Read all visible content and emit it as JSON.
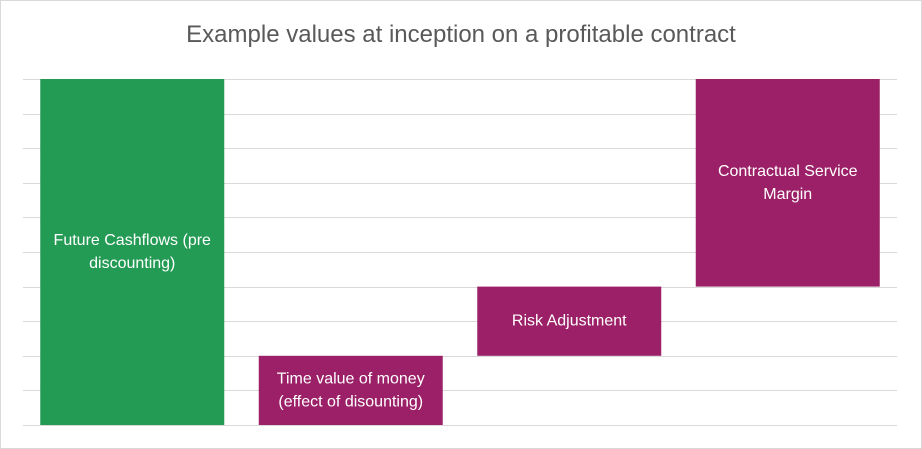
{
  "chart_data": {
    "type": "bar",
    "subtype": "waterfall",
    "title": "Example values at inception on a profitable contract",
    "xlabel": "",
    "ylabel": "",
    "ylim": [
      0,
      10
    ],
    "grid": true,
    "legend": "none",
    "categories": [
      "Future Cashflows (pre discounting)",
      "Time value of money (effect of disounting)",
      "Risk Adjustment",
      "Contractual Service Margin"
    ],
    "bars": [
      {
        "label_lines": [
          "Future Cashflows (pre",
          "discounting)"
        ],
        "base": 0,
        "top": 10,
        "color": "#249b55"
      },
      {
        "label_lines": [
          "Time value of money",
          "(effect of disounting)"
        ],
        "base": 0,
        "top": 2,
        "color": "#9b2067"
      },
      {
        "label_lines": [
          "Risk Adjustment"
        ],
        "base": 2,
        "top": 4,
        "color": "#9b2067"
      },
      {
        "label_lines": [
          "Contractual Service",
          "Margin"
        ],
        "base": 4,
        "top": 10,
        "color": "#9b2067"
      }
    ]
  }
}
